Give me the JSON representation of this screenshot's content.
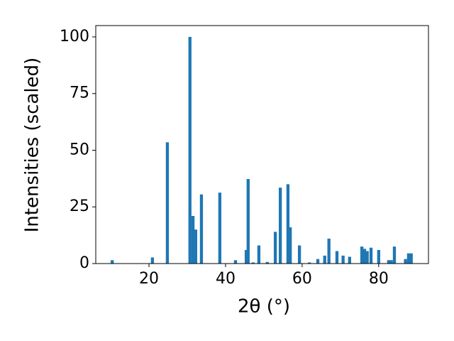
{
  "chart_data": {
    "type": "bar",
    "x_label": "2θ (°)",
    "y_label": "Intensities (scaled)",
    "x": [
      10.4,
      20.9,
      24.8,
      30.7,
      31.5,
      32.2,
      33.7,
      38.5,
      42.6,
      45.4,
      45.9,
      47.2,
      48.7,
      50.9,
      53.0,
      54.3,
      56.3,
      56.9,
      59.3,
      61.9,
      64.1,
      65.9,
      67.0,
      69.1,
      70.7,
      72.4,
      75.6,
      76.3,
      77.0,
      78.0,
      80.0,
      82.6,
      83.3,
      84.1,
      87.0,
      87.8,
      88.5
    ],
    "values": [
      1.5,
      2.7,
      53.5,
      100,
      21,
      15,
      30.5,
      31.3,
      1.5,
      6,
      37.3,
      0.5,
      8,
      0.7,
      14,
      33.5,
      35,
      16,
      8,
      0.5,
      2,
      3.5,
      11,
      5.5,
      3.5,
      3,
      7.5,
      6.5,
      5.5,
      7,
      6,
      1.5,
      1.5,
      7.5,
      2,
      4.5,
      4.5
    ],
    "color": "#1f77b4",
    "xlim": [
      6.1,
      93.0
    ],
    "xticks": [
      20,
      40,
      60,
      80
    ],
    "ylim": [
      0,
      105
    ],
    "yticks": [
      0,
      25,
      50,
      75,
      100
    ],
    "grid": false
  }
}
